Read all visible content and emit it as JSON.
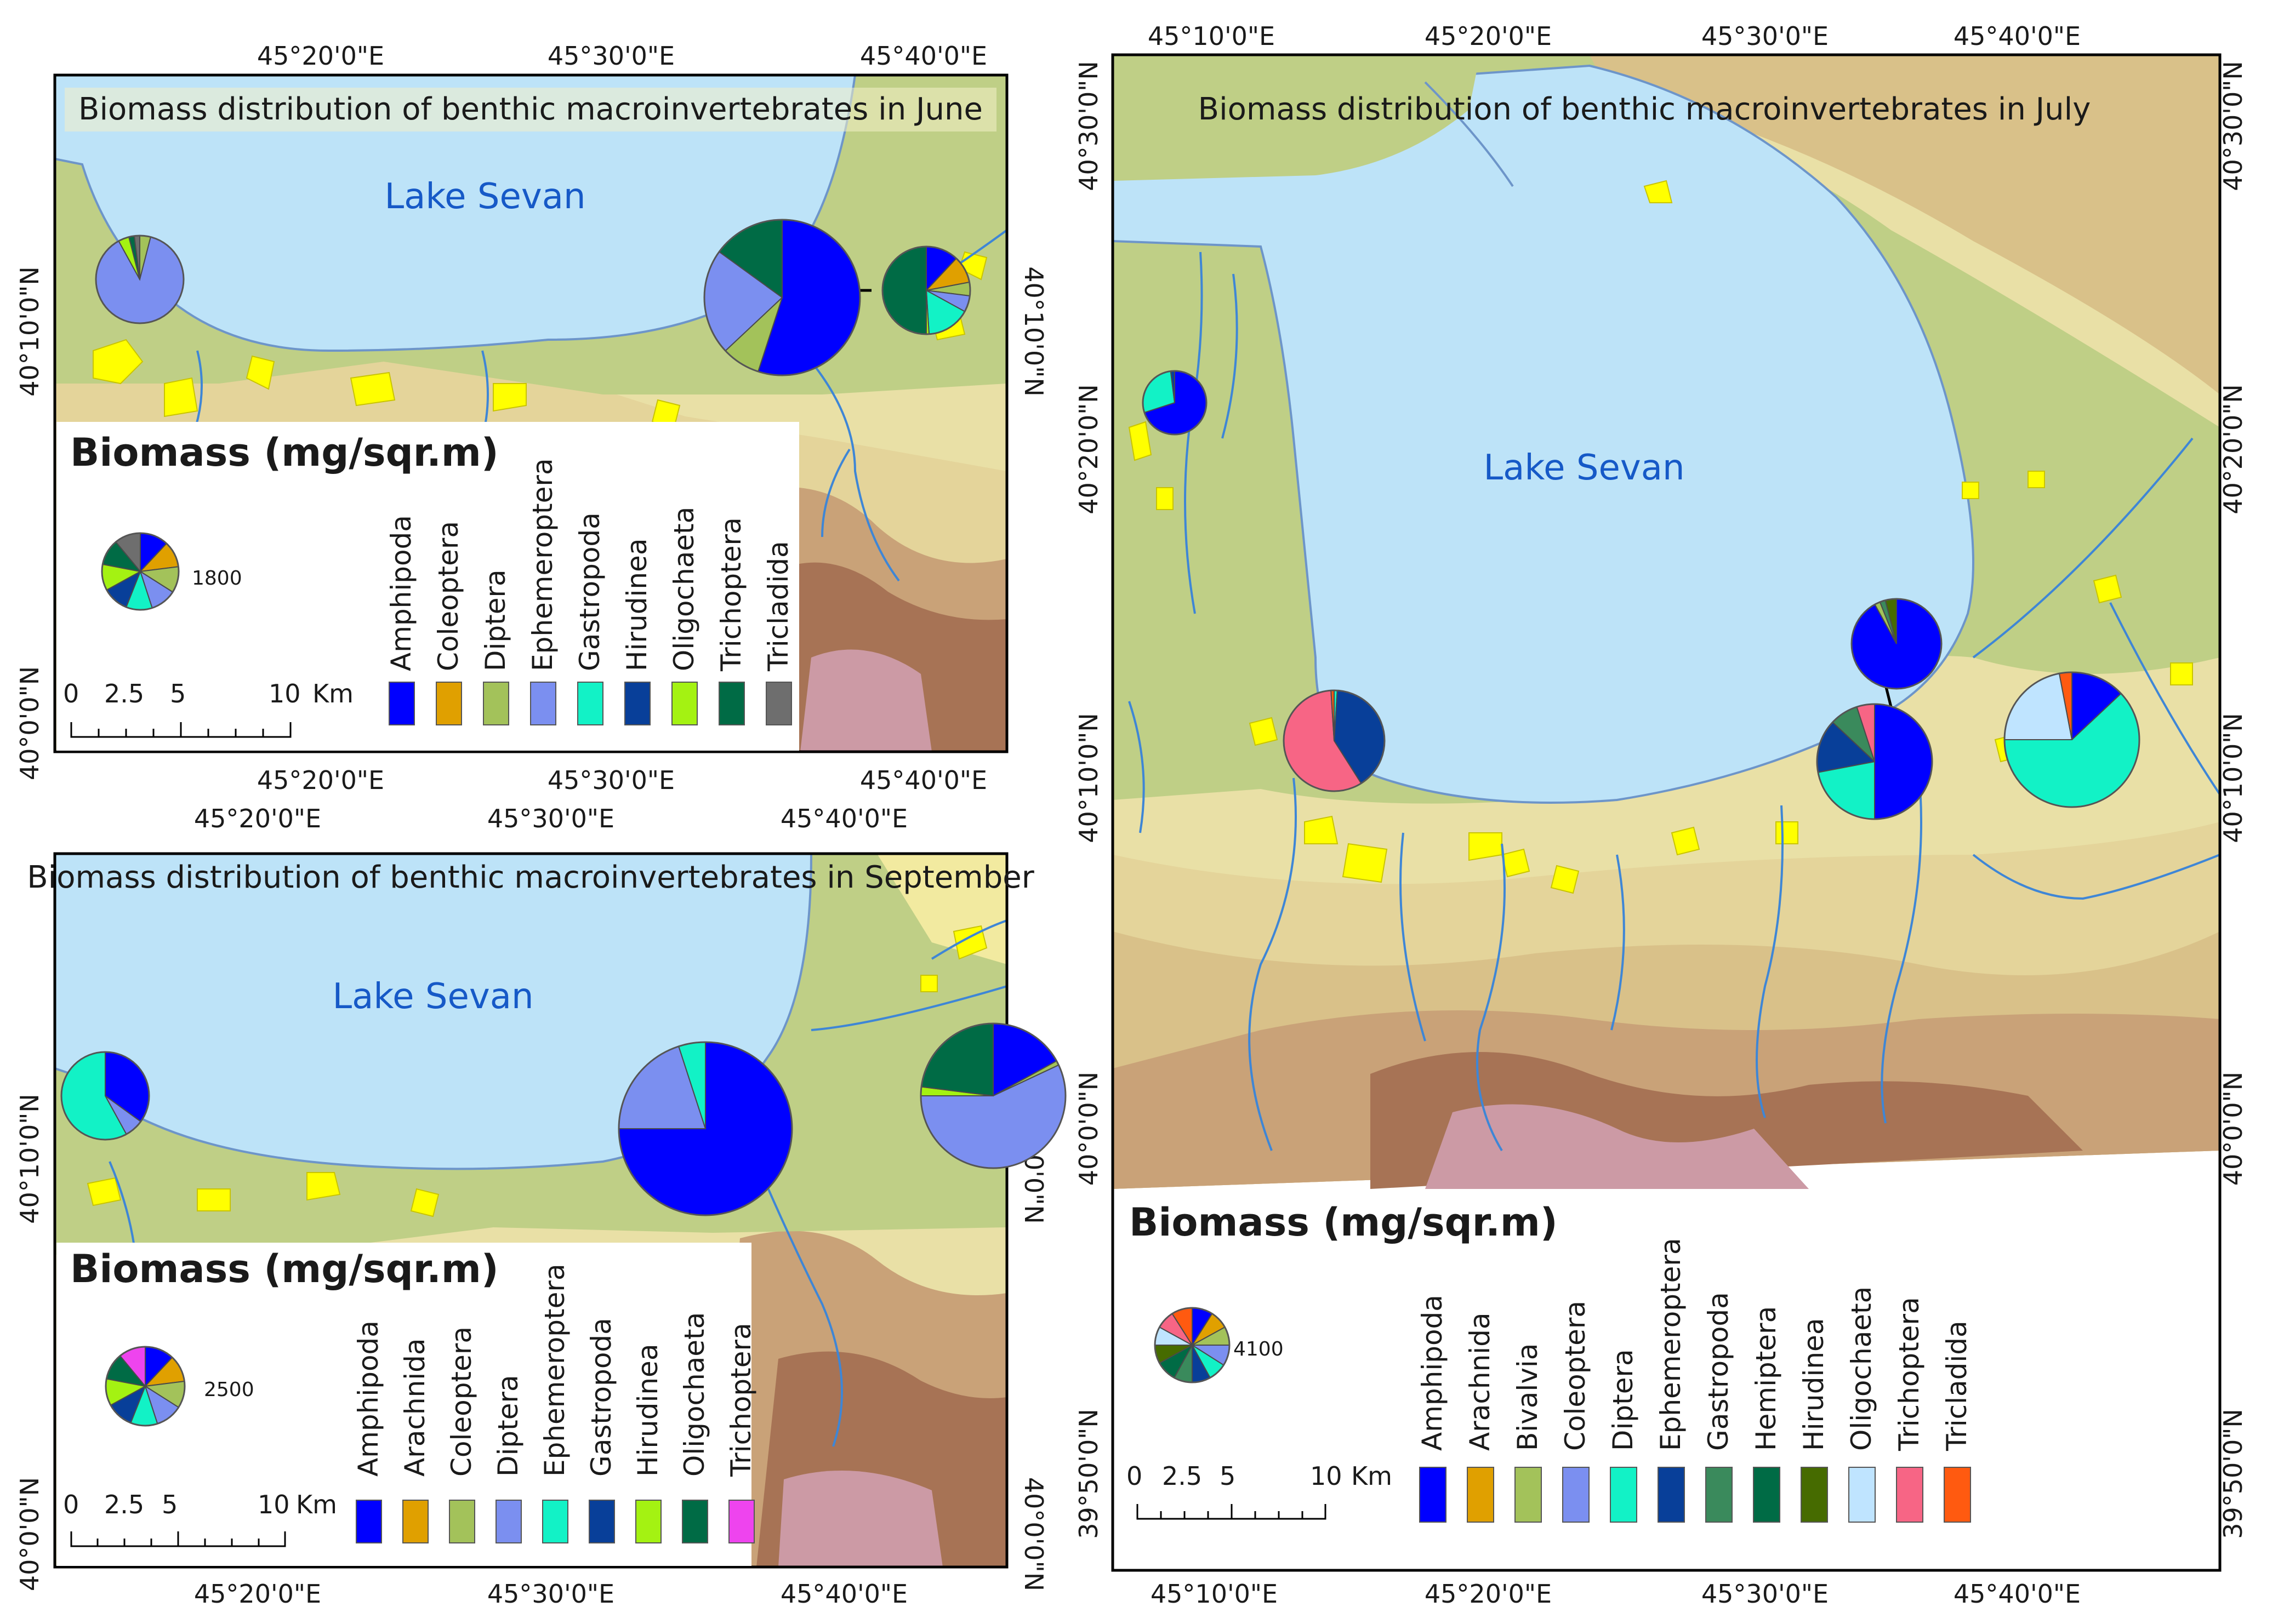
{
  "colors": {
    "Amphipoda": "#0000ff",
    "Arachnida": "#e0a000",
    "Bivalvia": "#a3c25a",
    "Coleoptera": "#7b8ff0",
    "Diptera": "#12f2c6",
    "Ephemeroptera": "#083f99",
    "Gastropoda": "#3a8a5c",
    "Hemiptera": "#006b45",
    "Hirudinea": "#466b00",
    "Oligochaeta": "#bfe4ff",
    "Trichoptera": "#f76585",
    "Tricladida": "#ff5a10",
    "lake": "#bde3f8",
    "urban": "#ffff00",
    "river": "#3e86d6"
  },
  "panels": {
    "june": {
      "title": "Biomass distribution of benthic macroinvertebrates in June",
      "lake_label": "Lake Sevan",
      "top_ticks": [
        "45°20'0\"E",
        "45°30'0\"E",
        "45°40'0\"E"
      ],
      "bottom_ticks": [
        "45°20'0\"E",
        "45°30'0\"E",
        "45°40'0\"E"
      ],
      "left_ticks": [
        "40°10'0\"N",
        "40°0'0\"N"
      ],
      "right_ticks": [
        "40°10'0\"N"
      ],
      "legend_heading": "Biomass (mg/sqr.m)",
      "reference_value": "1800",
      "scale_numbers": [
        "0",
        "2.5",
        "5",
        "10"
      ],
      "scale_unit": "Km",
      "legend_taxa": [
        "Amphipoda",
        "Coleoptera",
        "Diptera",
        "Ephemeroptera",
        "Gastropoda",
        "Hirudinea",
        "Oligochaeta",
        "Trichoptera",
        "Tricladida"
      ],
      "legend_colors": [
        "#0000ff",
        "#e0a000",
        "#a3c25a",
        "#7b8ff0",
        "#12f2c6",
        "#083f99",
        "#a4f212",
        "#006b45",
        "#6e6e6e"
      ],
      "pie_colors": [
        "#0000ff",
        "#e0a000",
        "#a3c25a",
        "#7b8ff0",
        "#12f2c6",
        "#083f99",
        "#a4f212",
        "#006b45",
        "#6e6e6e"
      ],
      "reference_pie": [
        12,
        11,
        11,
        11,
        11,
        11,
        11,
        11,
        11
      ],
      "pies": [
        {
          "site": "west",
          "values": [
            0,
            0,
            4,
            88,
            0,
            0,
            4,
            2,
            2
          ]
        },
        {
          "site": "east-large",
          "values": [
            55,
            0,
            8,
            22,
            0,
            0,
            0,
            15,
            0
          ]
        },
        {
          "site": "east-small",
          "values": [
            12,
            10,
            5,
            6,
            16,
            0,
            1,
            50,
            0
          ]
        }
      ]
    },
    "september": {
      "title": "Biomass distribution of benthic macroinvertebrates in September",
      "lake_label": "Lake Sevan",
      "top_ticks": [
        "45°20'0\"E",
        "45°30'0\"E",
        "45°40'0\"E"
      ],
      "bottom_ticks": [
        "45°20'0\"E",
        "45°30'0\"E",
        "45°40'0\"E"
      ],
      "left_ticks": [
        "40°10'0\"N",
        "40°0'0\"N"
      ],
      "right_ticks": [
        "40°10'0\"N",
        "40°0'0\"N"
      ],
      "legend_heading": "Biomass (mg/sqr.m)",
      "reference_value": "2500",
      "scale_numbers": [
        "0",
        "2.5",
        "5",
        "10"
      ],
      "scale_unit": "Km",
      "legend_taxa": [
        "Amphipoda",
        "Arachnida",
        "Coleoptera",
        "Diptera",
        "Ephemeroptera",
        "Gastropoda",
        "Hirudinea",
        "Oligochaeta",
        "Trichoptera"
      ],
      "legend_colors": [
        "#0000ff",
        "#e0a000",
        "#a3c25a",
        "#7b8ff0",
        "#12f2c6",
        "#083f99",
        "#a4f212",
        "#006b45",
        "#ee44ee"
      ],
      "pie_colors": [
        "#0000ff",
        "#e0a000",
        "#a3c25a",
        "#7b8ff0",
        "#12f2c6",
        "#083f99",
        "#a4f212",
        "#006b45",
        "#ee44ee"
      ],
      "reference_pie": [
        12,
        11,
        11,
        11,
        11,
        11,
        11,
        11,
        11
      ],
      "pies": [
        {
          "site": "west",
          "values": [
            35,
            0,
            0,
            7,
            58,
            0,
            0,
            0,
            0
          ]
        },
        {
          "site": "center-large",
          "values": [
            75,
            0,
            0,
            20,
            5,
            0,
            0,
            0,
            0
          ]
        },
        {
          "site": "east",
          "values": [
            17,
            0,
            1,
            57,
            0,
            0,
            2,
            23,
            0
          ]
        }
      ]
    },
    "july": {
      "title": "Biomass distribution of benthic macroinvertebrates in July",
      "lake_label": "Lake Sevan",
      "top_ticks": [
        "45°10'0\"E",
        "45°20'0\"E",
        "45°30'0\"E",
        "45°40'0\"E"
      ],
      "bottom_ticks": [
        "45°10'0\"E",
        "45°20'0\"E",
        "45°30'0\"E",
        "45°40'0\"E"
      ],
      "left_ticks": [
        "40°30'0\"N",
        "40°20'0\"N",
        "40°10'0\"N",
        "40°0'0\"N",
        "39°50'0\"N"
      ],
      "right_ticks": [
        "40°30'0\"N",
        "40°20'0\"N",
        "40°10'0\"N",
        "40°0'0\"N",
        "39°50'0\"N"
      ],
      "legend_heading": "Biomass (mg/sqr.m)",
      "reference_value": "4100",
      "scale_numbers": [
        "0",
        "2.5",
        "5",
        "10"
      ],
      "scale_unit": "Km",
      "legend_taxa": [
        "Amphipoda",
        "Arachnida",
        "Bivalvia",
        "Coleoptera",
        "Diptera",
        "Ephemeroptera",
        "Gastropoda",
        "Hemiptera",
        "Hirudinea",
        "Oligochaeta",
        "Trichoptera",
        "Tricladida"
      ],
      "legend_colors": [
        "#0000ff",
        "#e0a000",
        "#a3c25a",
        "#7b8ff0",
        "#12f2c6",
        "#083f99",
        "#3a8a5c",
        "#006b45",
        "#466b00",
        "#bfe4ff",
        "#f76585",
        "#ff5a10"
      ],
      "pie_colors": [
        "#0000ff",
        "#e0a000",
        "#a3c25a",
        "#7b8ff0",
        "#12f2c6",
        "#083f99",
        "#3a8a5c",
        "#006b45",
        "#466b00",
        "#bfe4ff",
        "#f76585",
        "#ff5a10"
      ],
      "reference_pie": [
        9,
        8,
        8,
        9,
        8,
        8,
        8,
        9,
        8,
        8,
        8,
        9
      ],
      "pies": [
        {
          "site": "north-west",
          "values": [
            70,
            0,
            0,
            0,
            28,
            2,
            0,
            0,
            0,
            0,
            0,
            0
          ]
        },
        {
          "site": "south-west",
          "values": [
            0,
            0,
            0,
            0,
            1,
            40,
            0,
            0,
            0,
            0,
            58,
            1
          ]
        },
        {
          "site": "east-shore",
          "values": [
            92,
            0,
            2,
            0,
            0,
            0,
            2,
            0,
            4,
            0,
            0,
            0
          ]
        },
        {
          "site": "south-east",
          "values": [
            50,
            0,
            0,
            0,
            22,
            15,
            8,
            0,
            0,
            0,
            5,
            0
          ]
        },
        {
          "site": "east-large",
          "values": [
            13,
            0,
            0,
            0,
            62,
            0,
            0,
            0,
            0,
            22,
            0,
            3
          ]
        }
      ]
    }
  }
}
